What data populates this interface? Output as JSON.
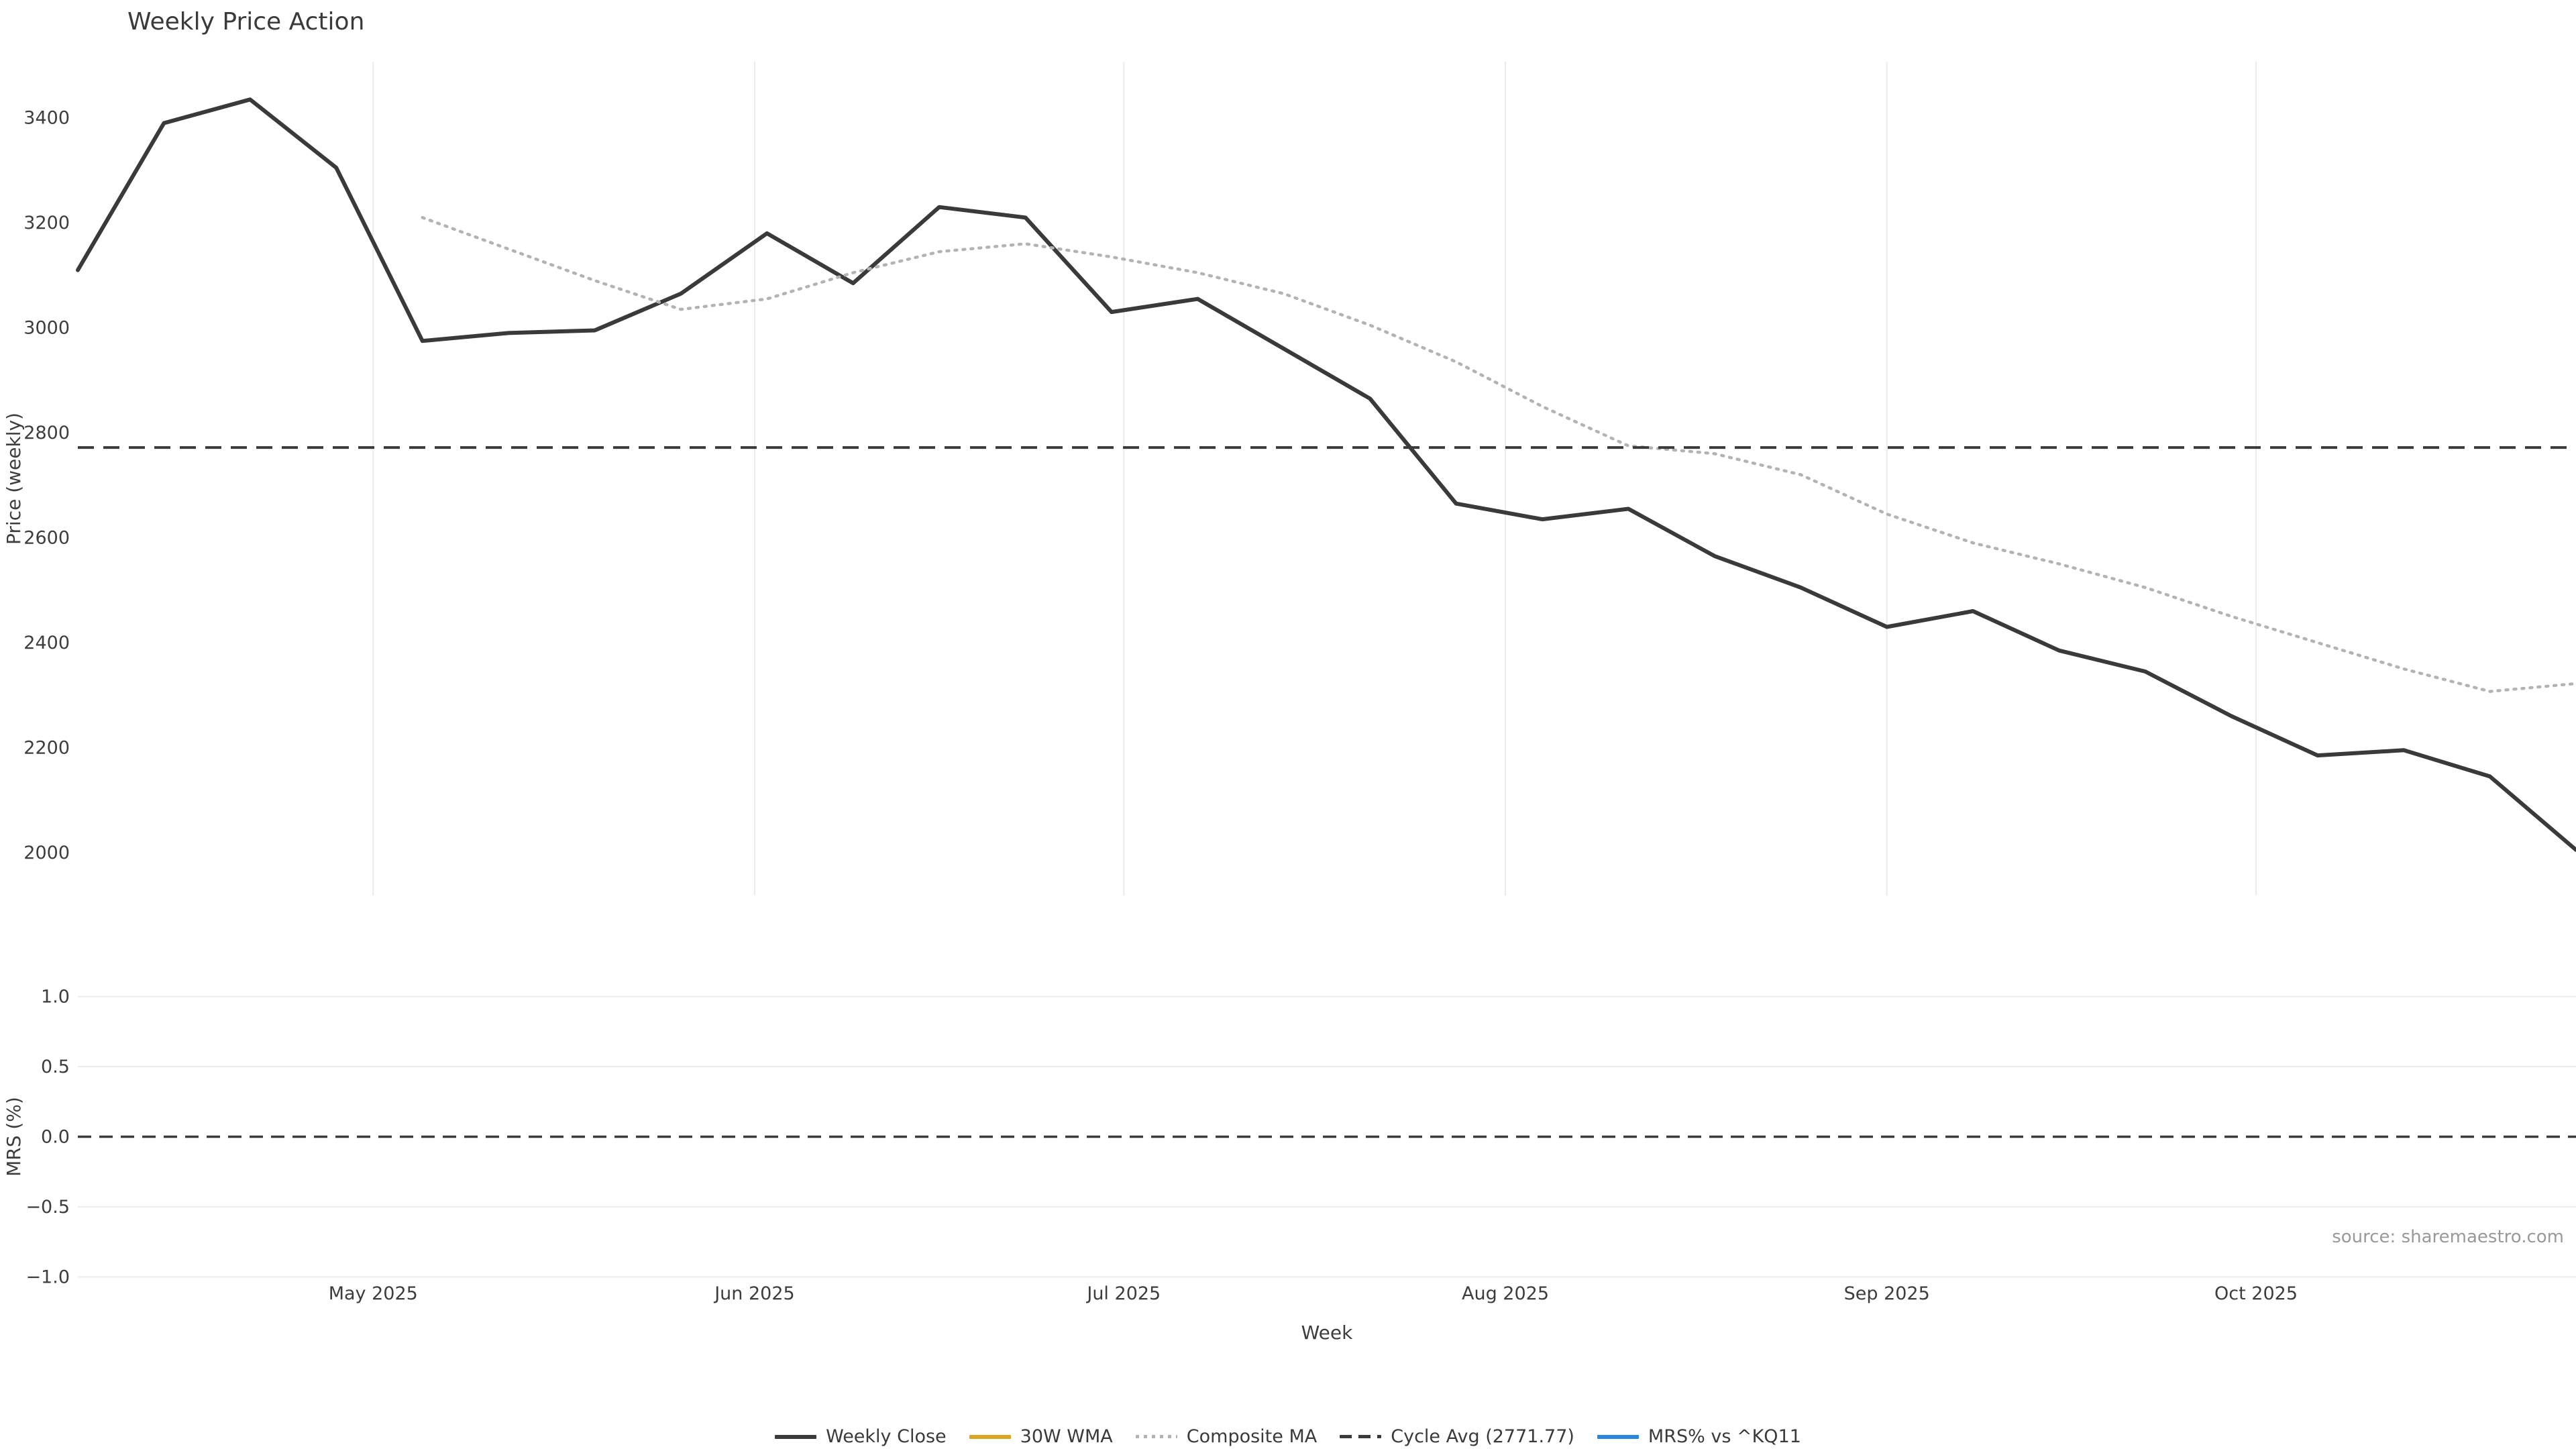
{
  "title": "Weekly Price Action",
  "source_note": "source: sharemaestro.com",
  "legend": {
    "items": [
      {
        "label": "Weekly Close",
        "swatch": "solid-dark"
      },
      {
        "label": "30W WMA",
        "swatch": "solid-gold"
      },
      {
        "label": "Composite MA",
        "swatch": "dotted"
      },
      {
        "label": "Cycle Avg (2771.77)",
        "swatch": "dashed"
      },
      {
        "label": "MRS% vs ^KQ11",
        "swatch": "solid-blue"
      }
    ]
  },
  "chart_data": [
    {
      "type": "line",
      "panel": "price",
      "title": "Weekly Price Action",
      "xlabel": "Week",
      "ylabel": "Price (weekly)",
      "grid": "vertical-months-only",
      "legend_position": "bottom-center",
      "x": [
        "2025-04-07",
        "2025-04-14",
        "2025-04-21",
        "2025-04-28",
        "2025-05-05",
        "2025-05-12",
        "2025-05-19",
        "2025-05-26",
        "2025-06-02",
        "2025-06-09",
        "2025-06-16",
        "2025-06-23",
        "2025-06-30",
        "2025-07-07",
        "2025-07-14",
        "2025-07-21",
        "2025-07-28",
        "2025-08-04",
        "2025-08-11",
        "2025-08-18",
        "2025-08-25",
        "2025-09-01",
        "2025-09-08",
        "2025-09-15",
        "2025-09-22",
        "2025-09-29",
        "2025-10-06",
        "2025-10-13",
        "2025-10-20",
        "2025-10-27"
      ],
      "x_tick_labels": [
        "May 2025",
        "Jun 2025",
        "Jul 2025",
        "Aug 2025",
        "Sep 2025",
        "Oct 2025"
      ],
      "month_starts": [
        "2025-05-01",
        "2025-06-01",
        "2025-07-01",
        "2025-08-01",
        "2025-09-01",
        "2025-10-01"
      ],
      "y_ticks": [
        "3400",
        "3200",
        "3000",
        "2800",
        "2600",
        "2400",
        "2200",
        "2000"
      ],
      "y_tick_values": [
        3400,
        3200,
        3000,
        2800,
        2600,
        2400,
        2200,
        2000
      ],
      "ylim": [
        1918,
        3507
      ],
      "series": [
        {
          "name": "Weekly Close",
          "color": "#3a3a3a",
          "style": "solid",
          "width": 6,
          "start_index": 0,
          "values": [
            3110,
            3390,
            3435,
            3305,
            2975,
            2990,
            2995,
            3065,
            3180,
            3085,
            3230,
            3210,
            3030,
            3055,
            2960,
            2865,
            2665,
            2635,
            2655,
            2565,
            2505,
            2430,
            2460,
            2385,
            2345,
            2260,
            2185,
            2195,
            2145,
            2005
          ]
        },
        {
          "name": "30W WMA",
          "color": "#daa520",
          "style": "solid",
          "width": 5,
          "start_index": 0,
          "values": []
        },
        {
          "name": "Composite MA",
          "color": "#b3b3b3",
          "style": "dotted",
          "width": 4.5,
          "start_index": 4,
          "values": [
            3210,
            3150,
            3090,
            3035,
            3055,
            3105,
            3145,
            3160,
            3135,
            3105,
            3065,
            3005,
            2935,
            2850,
            2775,
            2760,
            2720,
            2645,
            2590,
            2550,
            2505,
            2450,
            2400,
            2350,
            2307,
            2322
          ]
        },
        {
          "name": "Cycle Avg (2771.77)",
          "color": "#3a3a3a",
          "style": "dashed",
          "width": 4,
          "constant": 2771.77
        }
      ]
    },
    {
      "type": "line",
      "panel": "mrs",
      "ylabel": "MRS (%)",
      "y_ticks": [
        "1.0",
        "0.5",
        "0.0",
        "−0.5",
        "−1.0"
      ],
      "y_tick_values": [
        1.0,
        0.5,
        0.0,
        -0.5,
        -1.0
      ],
      "ylim": [
        -1.05,
        1.05
      ],
      "zero_line_value": 0.0,
      "series": [
        {
          "name": "MRS% vs ^KQ11",
          "color": "#2d86de",
          "style": "solid",
          "width": 4,
          "values": []
        }
      ]
    }
  ]
}
